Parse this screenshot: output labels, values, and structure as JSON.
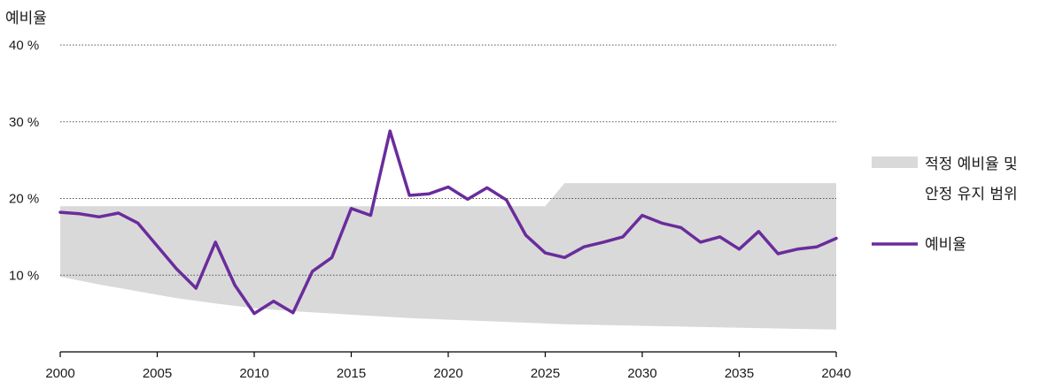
{
  "chart_data": {
    "type": "line",
    "ylabel": "예비율",
    "xlim": [
      2000,
      2040
    ],
    "ylim": [
      0,
      40
    ],
    "x_ticks": [
      2000,
      2005,
      2010,
      2015,
      2020,
      2025,
      2030,
      2035,
      2040
    ],
    "y_ticks": [
      {
        "value": 10,
        "label": "10 %"
      },
      {
        "value": 20,
        "label": "20 %"
      },
      {
        "value": 30,
        "label": "30 %"
      },
      {
        "value": 40,
        "label": "40 %"
      }
    ],
    "grid": "horizontal dotted",
    "legend_position": "right",
    "series": [
      {
        "name": "예비율",
        "color": "#6a2c9c",
        "x": [
          2000,
          2001,
          2002,
          2003,
          2004,
          2005,
          2006,
          2007,
          2008,
          2009,
          2010,
          2011,
          2012,
          2013,
          2014,
          2015,
          2016,
          2017,
          2018,
          2019,
          2020,
          2021,
          2022,
          2023,
          2024,
          2025,
          2026,
          2027,
          2028,
          2029,
          2030,
          2031,
          2032,
          2033,
          2034,
          2035,
          2036,
          2037,
          2038,
          2039,
          2040
        ],
        "values": [
          18.2,
          18.0,
          17.6,
          18.1,
          16.8,
          13.8,
          10.8,
          8.3,
          14.3,
          8.7,
          5.0,
          6.6,
          5.1,
          10.5,
          12.3,
          18.7,
          17.8,
          28.8,
          20.4,
          20.6,
          21.5,
          19.9,
          21.4,
          19.8,
          15.2,
          12.9,
          12.3,
          13.7,
          14.3,
          15.0,
          17.8,
          16.8,
          16.2,
          14.3,
          15.0,
          13.4,
          15.7,
          12.8,
          13.4,
          13.7,
          14.8
        ]
      }
    ],
    "bands": [
      {
        "name_lines": [
          "적정 예비율 및",
          "안정 유지 범위"
        ],
        "color": "#d9d9d9",
        "x": [
          2000,
          2002,
          2004,
          2006,
          2008,
          2010,
          2012,
          2014,
          2016,
          2018,
          2020,
          2022,
          2024,
          2025,
          2026,
          2028,
          2030,
          2032,
          2034,
          2036,
          2038,
          2040
        ],
        "lower": [
          9.8,
          8.8,
          7.9,
          7.0,
          6.3,
          5.7,
          5.3,
          5.0,
          4.7,
          4.4,
          4.2,
          4.0,
          3.8,
          3.7,
          3.6,
          3.5,
          3.4,
          3.3,
          3.2,
          3.1,
          3.0,
          2.9
        ],
        "upper": [
          19.0,
          19.0,
          19.0,
          19.0,
          19.0,
          19.0,
          19.0,
          19.0,
          19.0,
          19.0,
          19.0,
          19.0,
          19.0,
          19.0,
          22.0,
          22.0,
          22.0,
          22.0,
          22.0,
          22.0,
          22.0,
          22.0
        ]
      }
    ]
  }
}
